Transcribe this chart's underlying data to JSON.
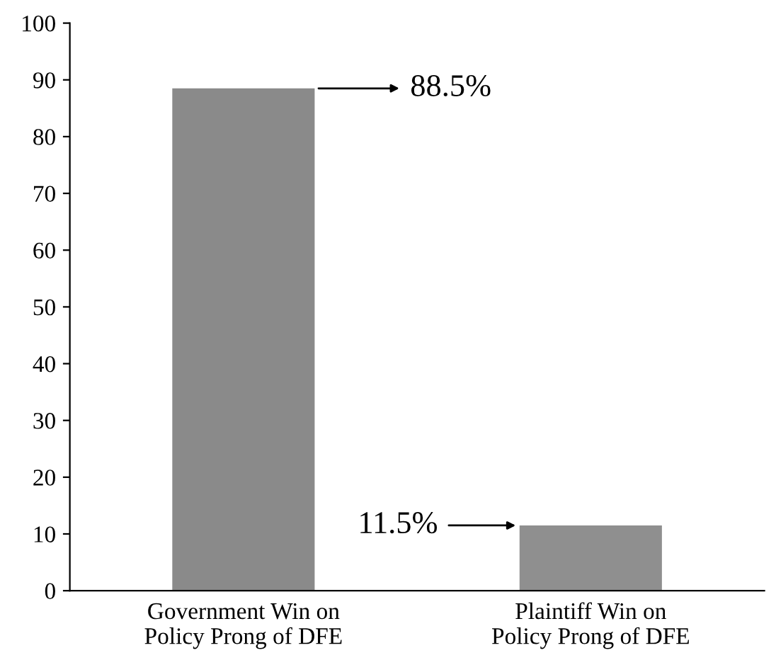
{
  "chart_data": {
    "type": "bar",
    "categories": [
      "Government Win on\nPolicy Prong of DFE",
      "Plaintiff Win on\nPolicy Prong of DFE"
    ],
    "values": [
      88.5,
      11.5
    ],
    "colors": [
      "#8a8a8a",
      "#8f8f8f"
    ],
    "value_labels": [
      "88.5%",
      "11.5%"
    ],
    "ylim": [
      0,
      100
    ],
    "yticks": [
      0,
      10,
      20,
      30,
      40,
      50,
      60,
      70,
      80,
      90,
      100
    ],
    "grid": false,
    "legend": false
  }
}
